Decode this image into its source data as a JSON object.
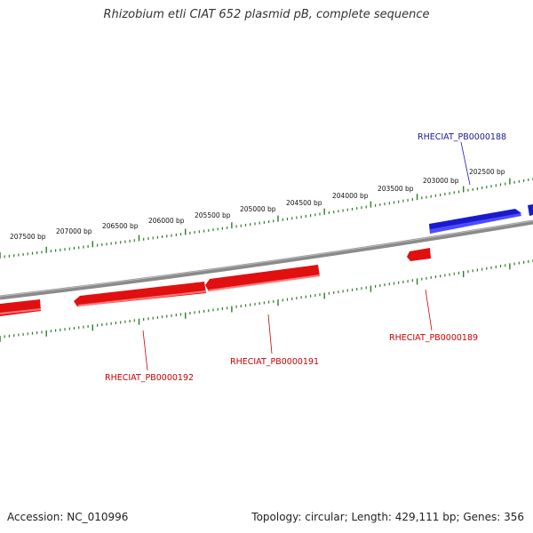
{
  "title": "Rhizobium etli CIAT 652 plasmid pB, complete sequence",
  "footer": {
    "accession": "Accession: NC_010996",
    "topology": "Topology: circular; Length: 429,111 bp; Genes: 356"
  },
  "colors": {
    "backbone": "#8a8a8a",
    "ruler": "#2d7a2d",
    "forward_gene": "#1a1acc",
    "reverse_gene": "#e01010",
    "forward_label": "#1a1a99",
    "reverse_label": "#cc0000"
  },
  "ruler_labels": [
    "202500 bp",
    "203000 bp",
    "203500 bp",
    "204000 bp",
    "204500 bp",
    "205000 bp",
    "205500 bp",
    "206000 bp",
    "206500 bp",
    "207000 bp",
    "207500 bp"
  ],
  "gene_labels": [
    {
      "name": "RHECIAT_PB0000188",
      "strand": "forward"
    },
    {
      "name": "RHECIAT_PB0000189",
      "strand": "reverse"
    },
    {
      "name": "RHECIAT_PB0000191",
      "strand": "reverse"
    },
    {
      "name": "RHECIAT_PB0000192",
      "strand": "reverse"
    }
  ]
}
